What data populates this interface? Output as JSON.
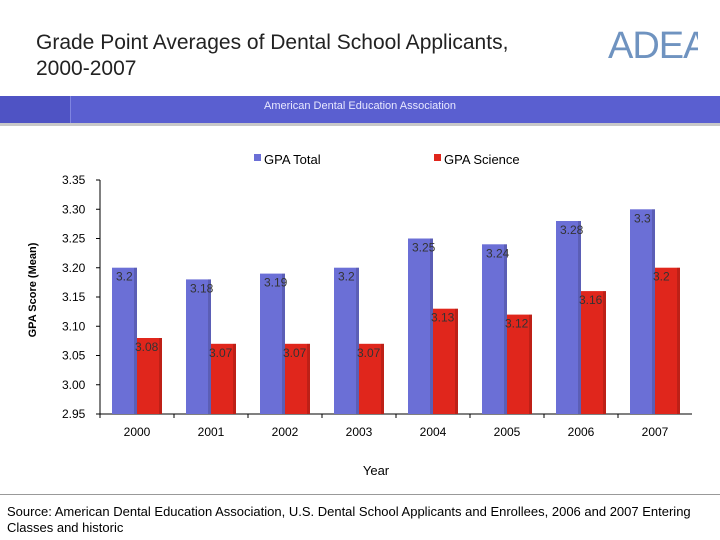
{
  "header": {
    "title": "Grade Point Averages of Dental School Applicants, 2000-2007",
    "logo_text": "ADEA",
    "band_text": "American Dental Education Association"
  },
  "colors": {
    "gpa_total": "#6b6fd6",
    "gpa_science": "#e0261c",
    "band": "#5a5fd0"
  },
  "chart_data": {
    "type": "bar",
    "categories": [
      "2000",
      "2001",
      "2002",
      "2003",
      "2004",
      "2005",
      "2006",
      "2007"
    ],
    "series": [
      {
        "name": "GPA Total",
        "values": [
          3.2,
          3.18,
          3.19,
          3.2,
          3.25,
          3.24,
          3.28,
          3.3
        ],
        "labels": [
          "3.2",
          "3.18",
          "3.19",
          "3.2",
          "3.25",
          "3.24",
          "3.28",
          "3.3"
        ]
      },
      {
        "name": "GPA Science",
        "values": [
          3.08,
          3.07,
          3.07,
          3.07,
          3.13,
          3.12,
          3.16,
          3.2
        ],
        "labels": [
          "3.08",
          "3.07",
          "3.07",
          "3.07",
          "3.13",
          "3.12",
          "3.16",
          "3.2"
        ]
      }
    ],
    "title": "Grade Point Averages of Dental School Applicants, 2000-2007",
    "xlabel": "Year",
    "ylabel": "GPA Score (Mean)",
    "ylim": [
      2.95,
      3.35
    ],
    "yticks": [
      "2.95",
      "3.00",
      "3.05",
      "3.10",
      "3.15",
      "3.20",
      "3.25",
      "3.30",
      "3.35"
    ],
    "legend": "top"
  },
  "footer": {
    "source": "Source: American Dental Education Association, U.S. Dental School Applicants and Enrollees, 2006 and 2007 Entering Classes and historic"
  }
}
